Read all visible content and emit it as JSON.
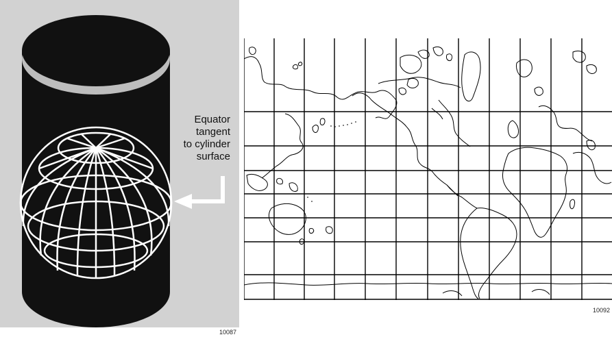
{
  "annotation": {
    "lines": [
      "Equator",
      "tangent",
      "to cylinder",
      "surface"
    ]
  },
  "figure_ids": {
    "left": "10087",
    "right": "10092"
  },
  "colors": {
    "panel_background": "#d2d2d2",
    "cylinder": "#111111",
    "globe_lines": "#ffffff",
    "rim": "#bdbdbd",
    "map_lines": "#000000"
  },
  "icons": {
    "cylinder": "cylinder-icon",
    "globe": "globe-icon",
    "arrow": "arrow-left-icon",
    "map": "world-map-icon"
  }
}
